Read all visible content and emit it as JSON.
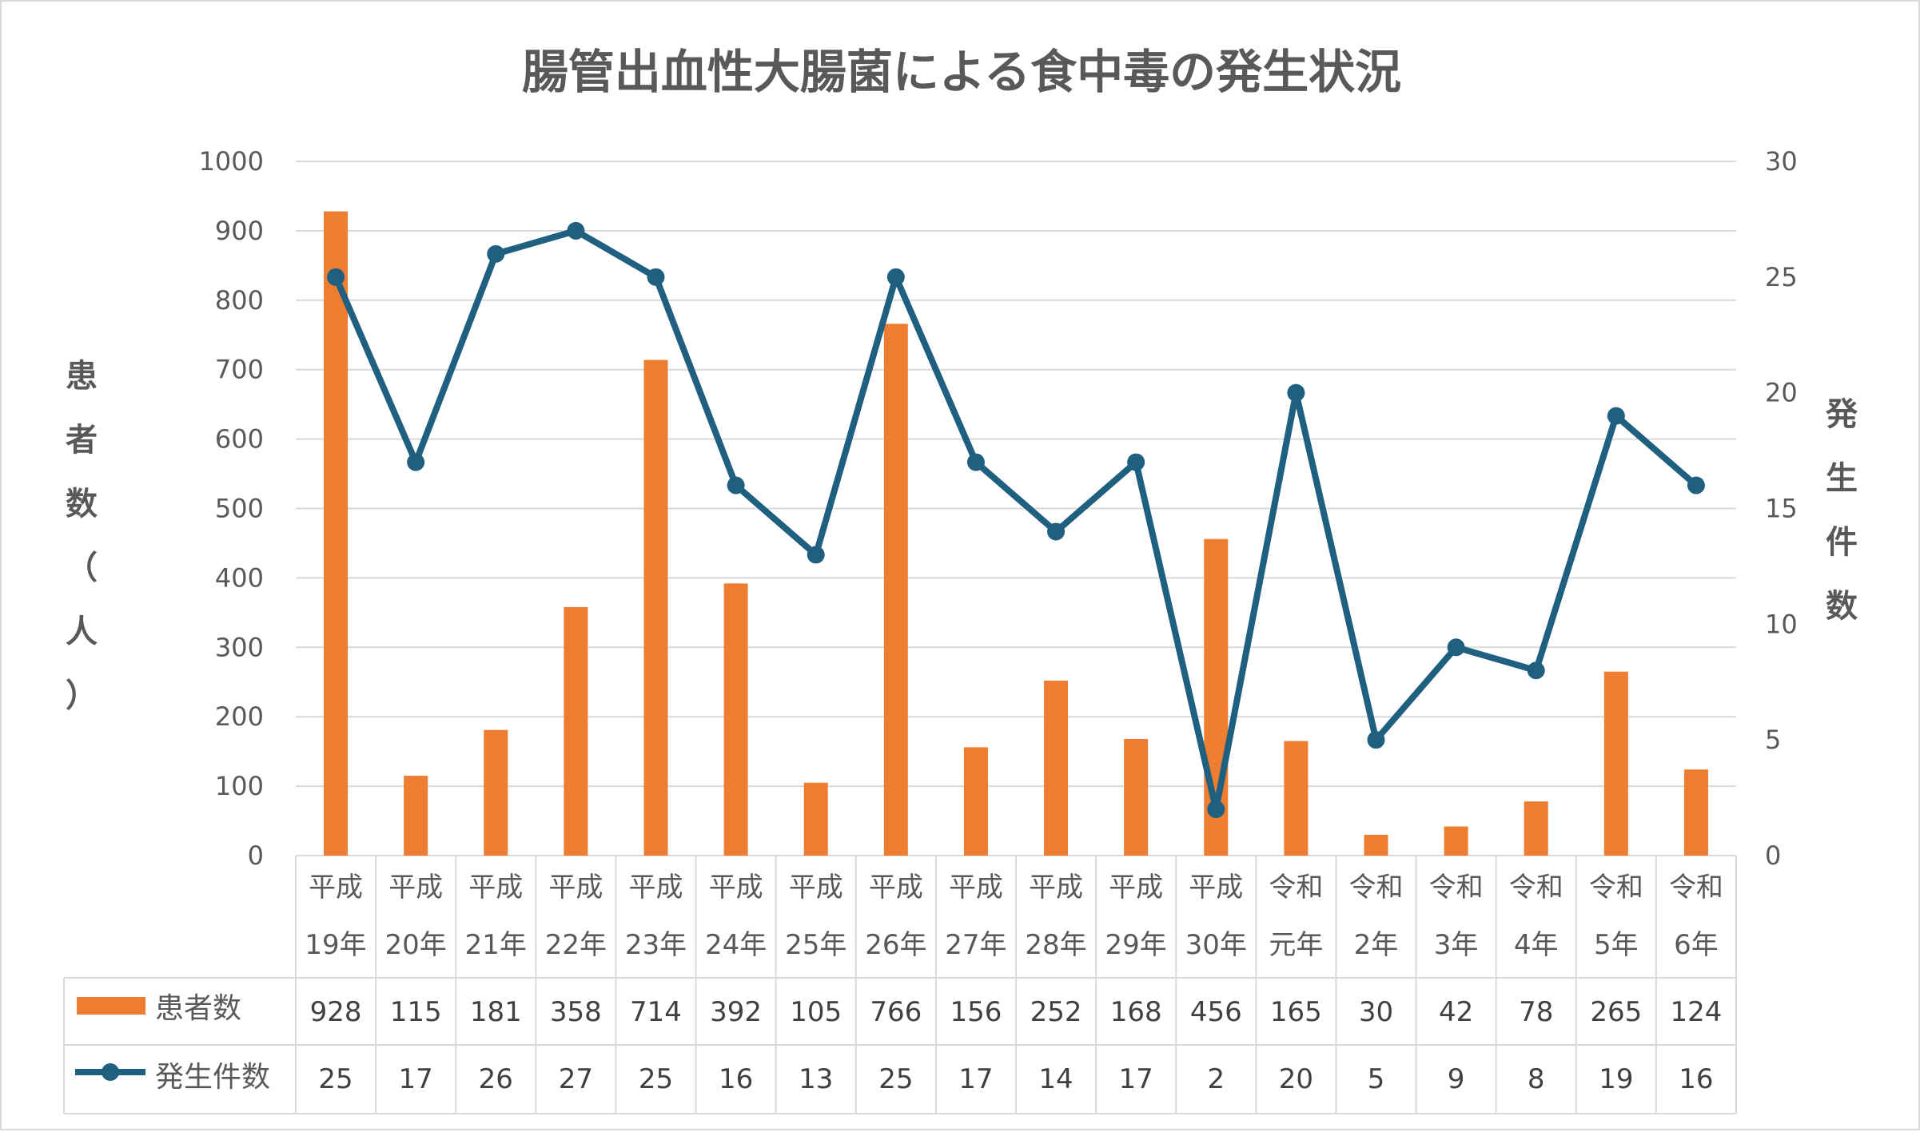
{
  "chart_data": {
    "type": "bar+line",
    "title": "腸管出血性大腸菌による食中毒の発生状況",
    "categories": [
      [
        "平成",
        "19年"
      ],
      [
        "平成",
        "20年"
      ],
      [
        "平成",
        "21年"
      ],
      [
        "平成",
        "22年"
      ],
      [
        "平成",
        "23年"
      ],
      [
        "平成",
        "24年"
      ],
      [
        "平成",
        "25年"
      ],
      [
        "平成",
        "26年"
      ],
      [
        "平成",
        "27年"
      ],
      [
        "平成",
        "28年"
      ],
      [
        "平成",
        "29年"
      ],
      [
        "平成",
        "30年"
      ],
      [
        "令和",
        "元年"
      ],
      [
        "令和",
        "2年"
      ],
      [
        "令和",
        "3年"
      ],
      [
        "令和",
        "4年"
      ],
      [
        "令和",
        "5年"
      ],
      [
        "令和",
        "6年"
      ]
    ],
    "series": [
      {
        "name": "患者数",
        "type": "bar",
        "axis": "left",
        "color": "#ED7D31",
        "values": [
          928,
          115,
          181,
          358,
          714,
          392,
          105,
          766,
          156,
          252,
          168,
          456,
          165,
          30,
          42,
          78,
          265,
          124
        ]
      },
      {
        "name": "発生件数",
        "type": "line",
        "axis": "right",
        "color": "#1F5F7F",
        "values": [
          25,
          17,
          26,
          27,
          25,
          16,
          13,
          25,
          17,
          14,
          17,
          2,
          20,
          5,
          9,
          8,
          19,
          16
        ]
      }
    ],
    "y_left": {
      "label": "患者数（人）",
      "label_chars": [
        "患",
        "者",
        "数",
        "（",
        "人",
        "）"
      ],
      "min": 0,
      "max": 1000,
      "step": 100,
      "ticks": [
        "0",
        "100",
        "200",
        "300",
        "400",
        "500",
        "600",
        "700",
        "800",
        "900",
        "1000"
      ]
    },
    "y_right": {
      "label": "発生件数",
      "label_chars": [
        "発",
        "生",
        "件",
        "数"
      ],
      "min": 0,
      "max": 30,
      "step": 5,
      "ticks": [
        "0",
        "5",
        "10",
        "15",
        "20",
        "25",
        "30"
      ]
    },
    "grid": true,
    "legend": "data-table-below"
  }
}
